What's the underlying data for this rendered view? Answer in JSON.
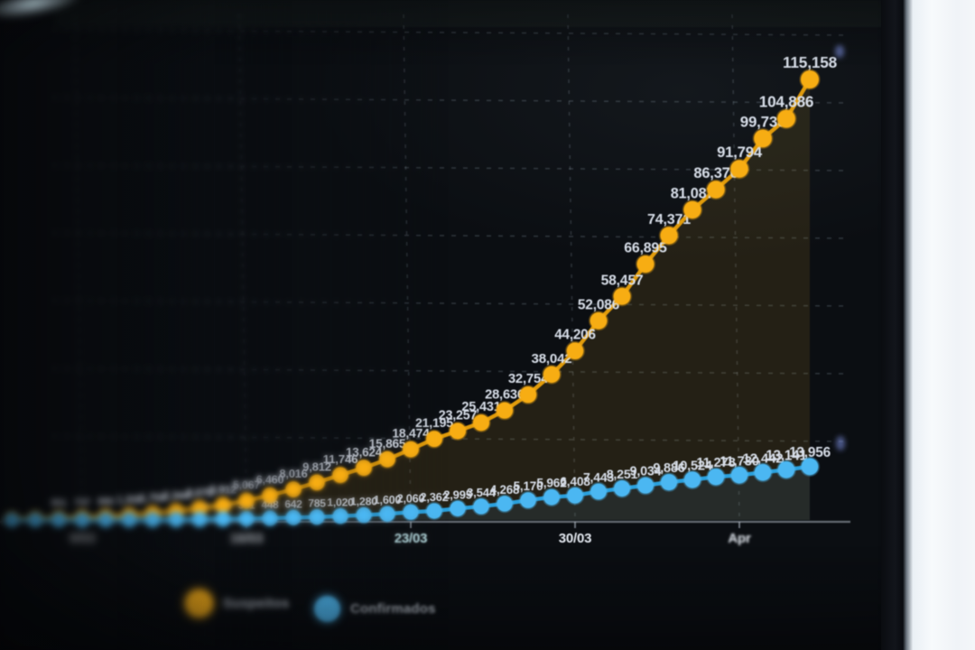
{
  "chart_data": {
    "type": "line",
    "title": "",
    "xlabel": "",
    "ylabel": "",
    "grid": "dashed",
    "legend_position": "bottom-left",
    "point_count": 35,
    "ylim": [
      0,
      125000
    ],
    "x_tick_labels": [
      "9/03",
      "16/03",
      "23/03",
      "30/03",
      "Apr"
    ],
    "x_tick_day_index": [
      3,
      10,
      17,
      24,
      31
    ],
    "label_from": [
      2,
      8
    ],
    "series": [
      {
        "name": "Suspeitos",
        "color": "#f4ad1b",
        "line_color": "#dd9b12",
        "area_color": "rgba(212,168,50,0.12)",
        "values": [
          319,
          416,
          551,
          737,
          980,
          1308,
          1759,
          2344,
          3075,
          3912,
          5067,
          6460,
          8016,
          9812,
          11746,
          13624,
          15865,
          18474,
          21195,
          23257,
          25431,
          28636,
          32754,
          38042,
          44206,
          52086,
          58457,
          66895,
          74371,
          81087,
          86376,
          91794,
          99730,
          104886,
          115158
        ]
      },
      {
        "name": "Confirmados",
        "color": "#4fb6ee",
        "line_color": "#2f9fd8",
        "area_color": "rgba(60,150,215,0.10)",
        "values": [
          13,
          21,
          30,
          39,
          41,
          59,
          78,
          112,
          169,
          245,
          331,
          448,
          642,
          785,
          1020,
          1280,
          1600,
          2060,
          2362,
          2995,
          3544,
          4268,
          5170,
          5962,
          6408,
          7443,
          8251,
          9034,
          9886,
          10524,
          11278,
          11730,
          12442,
          13141,
          13956
        ]
      }
    ]
  },
  "legend": [
    {
      "label": "Suspeitos",
      "color": "#f4ad1b"
    },
    {
      "label": "Confirmados",
      "color": "#4fb6ee"
    }
  ],
  "colors": {
    "background": "#0b0e12",
    "label_text": "#d9dfe9",
    "tick_text": "#e4e9f0",
    "tick_text_cyan": "#bfe3e8",
    "gridline": "rgba(165,180,195,0.22)",
    "wall": "#f6f9fc"
  }
}
